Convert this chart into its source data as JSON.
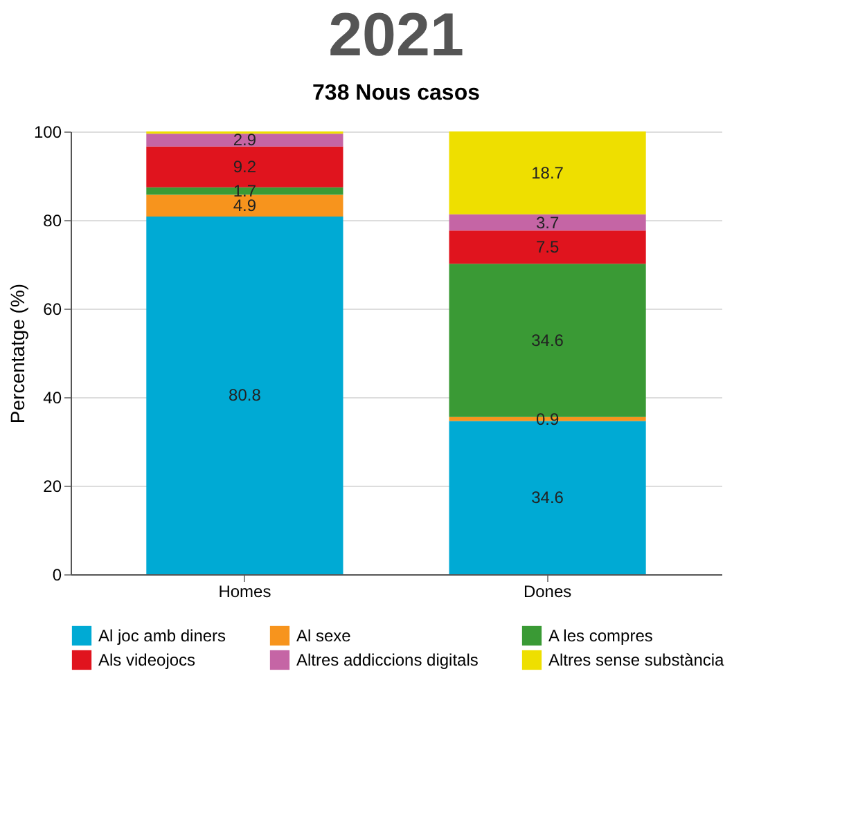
{
  "chart_data": {
    "type": "bar",
    "stacked": true,
    "title": "2021",
    "subtitle": "738 Nous casos",
    "ylabel": "Percentatge (%)",
    "categories": [
      "Homes",
      "Dones"
    ],
    "series": [
      {
        "name": "Al joc amb diners",
        "color": "#00aad4",
        "values": [
          80.8,
          34.6
        ],
        "value_labels": [
          "80.8",
          "34.6"
        ]
      },
      {
        "name": "Al sexe",
        "color": "#f7941d",
        "values": [
          4.9,
          0.9
        ],
        "value_labels": [
          "4.9",
          "0.9"
        ]
      },
      {
        "name": "A les compres",
        "color": "#3a9a35",
        "values": [
          1.7,
          34.6
        ],
        "value_labels": [
          "1.7",
          "34.6"
        ]
      },
      {
        "name": "Als videojocs",
        "color": "#e0141e",
        "values": [
          9.2,
          7.5
        ],
        "value_labels": [
          "9.2",
          "7.5"
        ]
      },
      {
        "name": "Altres addiccions digitals",
        "color": "#c565a5",
        "values": [
          2.9,
          3.7
        ],
        "value_labels": [
          "2.9",
          "3.7"
        ]
      },
      {
        "name": "Altres sense substància",
        "color": "#eedf00",
        "values": [
          0.5,
          18.7
        ],
        "value_labels": [
          null,
          "18.7"
        ]
      }
    ],
    "ylim": [
      0,
      100
    ],
    "yticks": [
      0,
      20,
      40,
      60,
      80,
      100
    ],
    "grid": "y",
    "legend": "bottom"
  }
}
